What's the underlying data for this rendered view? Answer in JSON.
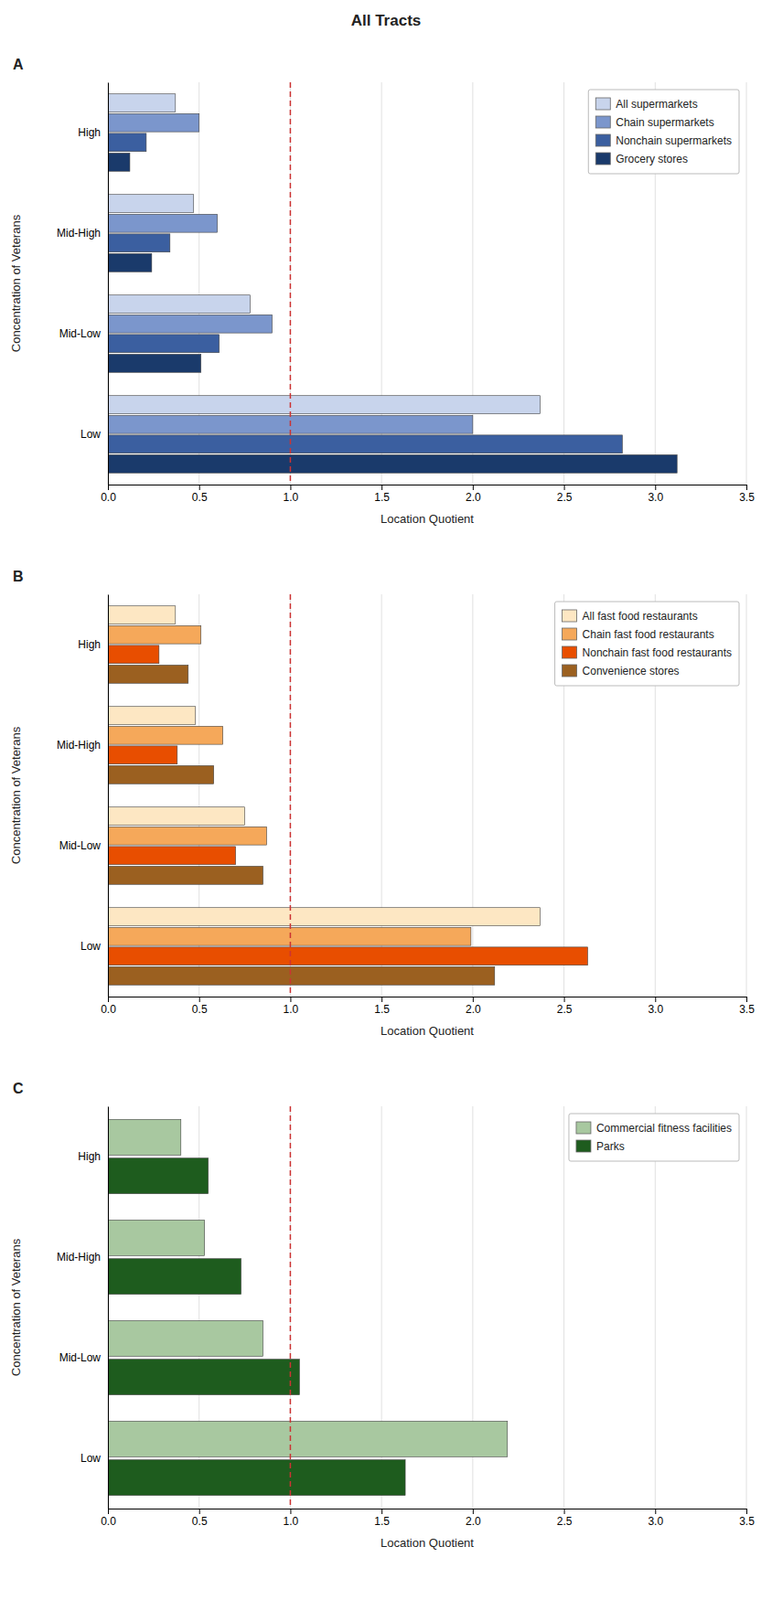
{
  "title": "All Tracts",
  "chart_data": [
    {
      "type": "bar",
      "orientation": "horizontal",
      "title": "A",
      "xlabel": "Location Quotient",
      "ylabel": "Concentration of Veterans",
      "categories": [
        "Low",
        "Mid-Low",
        "Mid-High",
        "High"
      ],
      "series": [
        {
          "name": "All supermarkets",
          "color": "#c8d4ec",
          "values": [
            2.37,
            0.78,
            0.47,
            0.37
          ]
        },
        {
          "name": "Chain supermarkets",
          "color": "#7b96cc",
          "values": [
            2.0,
            0.9,
            0.6,
            0.5
          ]
        },
        {
          "name": "Nonchain supermarkets",
          "color": "#3b5fa0",
          "values": [
            2.82,
            0.61,
            0.34,
            0.21
          ]
        },
        {
          "name": "Grocery stores",
          "color": "#1a3a6b",
          "values": [
            3.12,
            0.51,
            0.24,
            0.12
          ]
        }
      ],
      "xlim": [
        0,
        3.5
      ],
      "xticks": [
        {
          "value": 0,
          "label": "0.0"
        },
        0.5,
        {
          "value": 1,
          "label": "1.0"
        },
        1.5,
        {
          "value": 2,
          "label": "2.0"
        },
        2.5,
        {
          "value": 3,
          "label": "3.0"
        },
        3.5
      ],
      "reference_line": {
        "x": 1.0,
        "color": "#cc3333",
        "line_style": "dashed"
      },
      "grid": true,
      "legend": "upper right"
    },
    {
      "type": "bar",
      "orientation": "horizontal",
      "title": "B",
      "xlabel": "Location Quotient",
      "ylabel": "Concentration of Veterans",
      "categories": [
        "Low",
        "Mid-Low",
        "Mid-High",
        "High"
      ],
      "series": [
        {
          "name": "All fast food restaurants",
          "color": "#fde7c3",
          "values": [
            2.37,
            0.75,
            0.48,
            0.37
          ]
        },
        {
          "name": "Chain fast food restaurants",
          "color": "#f5a85a",
          "values": [
            1.99,
            0.87,
            0.63,
            0.51
          ]
        },
        {
          "name": "Nonchain fast food restaurants",
          "color": "#e84e00",
          "values": [
            2.63,
            0.7,
            0.38,
            0.28
          ]
        },
        {
          "name": "Convenience stores",
          "color": "#9b6020",
          "values": [
            2.12,
            0.85,
            0.58,
            0.44
          ]
        }
      ],
      "xlim": [
        0,
        3.5
      ],
      "xticks": [
        {
          "value": 0,
          "label": "0.0"
        },
        0.5,
        {
          "value": 1,
          "label": "1.0"
        },
        1.5,
        {
          "value": 2,
          "label": "2.0"
        },
        2.5,
        {
          "value": 3,
          "label": "3.0"
        },
        3.5
      ],
      "reference_line": {
        "x": 1.0,
        "color": "#cc3333",
        "line_style": "dashed"
      },
      "grid": true,
      "legend": "upper right"
    },
    {
      "type": "bar",
      "orientation": "horizontal",
      "title": "C",
      "xlabel": "Location Quotient",
      "ylabel": "Concentration of Veterans",
      "categories": [
        "Low",
        "Mid-Low",
        "Mid-High",
        "High"
      ],
      "series": [
        {
          "name": "Commercial fitness facilities",
          "color": "#a8c8a0",
          "values": [
            2.19,
            0.85,
            0.53,
            0.4
          ]
        },
        {
          "name": "Parks",
          "color": "#1e5c1e",
          "values": [
            1.63,
            1.05,
            0.73,
            0.55
          ]
        }
      ],
      "xlim": [
        0,
        3.5
      ],
      "xticks": [
        {
          "value": 0,
          "label": "0.0"
        },
        0.5,
        {
          "value": 1,
          "label": "1.0"
        },
        1.5,
        {
          "value": 2,
          "label": "2.0"
        },
        2.5,
        {
          "value": 3,
          "label": "3.0"
        },
        3.5
      ],
      "reference_line": {
        "x": 1.0,
        "color": "#cc3333",
        "line_style": "dashed"
      },
      "grid": true,
      "legend": "upper right"
    }
  ]
}
